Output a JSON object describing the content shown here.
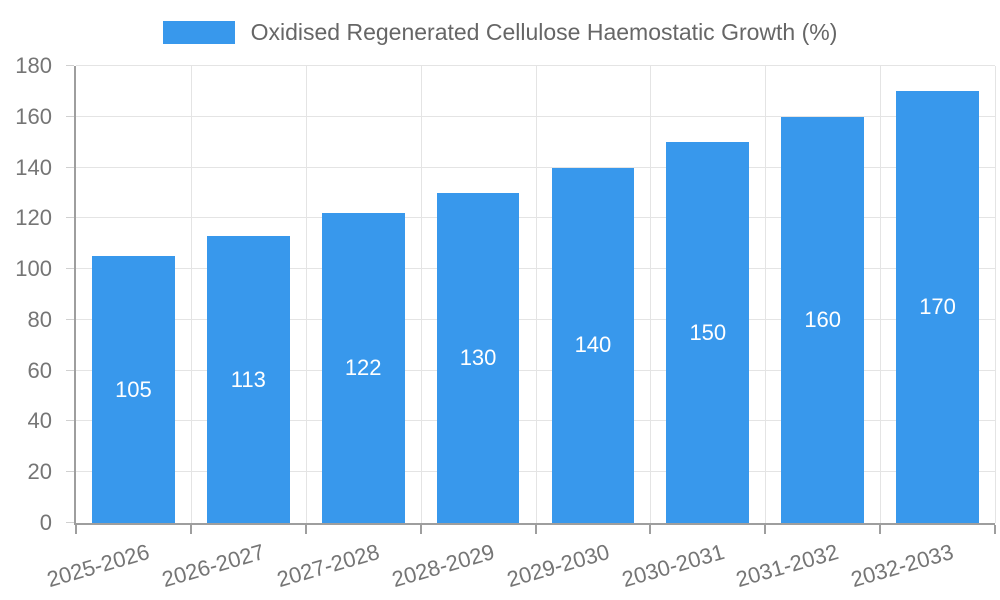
{
  "chart_data": {
    "type": "bar",
    "title": "",
    "legend_position": "top",
    "categories": [
      "2025-2026",
      "2026-2027",
      "2027-2028",
      "2028-2029",
      "2029-2030",
      "2030-2031",
      "2031-2032",
      "2032-2033"
    ],
    "series": [
      {
        "name": "Oxidised Regenerated Cellulose Haemostatic Growth (%)",
        "values": [
          105,
          113,
          122,
          130,
          140,
          150,
          160,
          170
        ]
      }
    ],
    "value_labels": [
      "105",
      "113",
      "122",
      "130",
      "140",
      "150",
      "160",
      "170"
    ],
    "xlabel": "",
    "ylabel": "",
    "ylim": [
      0,
      180
    ],
    "ytick_step": 20,
    "ytick_labels": [
      "0",
      "20",
      "40",
      "60",
      "80",
      "100",
      "120",
      "140",
      "160",
      "180"
    ],
    "grid": true,
    "x_label_rotation_deg": -16
  },
  "colors": {
    "bar": "#3898ec",
    "grid": "#e4e4e4",
    "axis": "#9e9e9e",
    "tick_text": "#757575",
    "value_label": "#ffffff",
    "legend_text": "#666666"
  }
}
